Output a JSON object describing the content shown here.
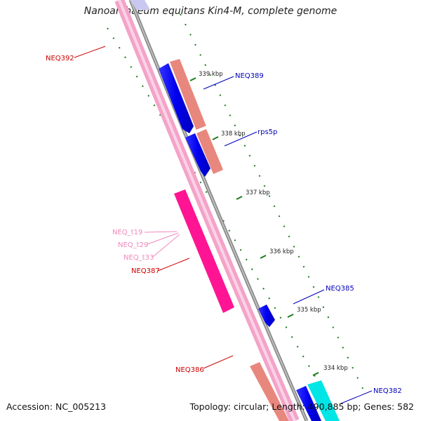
{
  "title": "Nanoarchaeum equitans Kin4-M, complete genome",
  "footer": {
    "accession_label": "Accession: NC_005213",
    "topology_text": "Topology: circular;",
    "length_text": "Length: 490,885 bp;",
    "genes_text": "Genes: 582"
  },
  "colors": {
    "backbone_gray": "#8a8a8a",
    "track_pink": "#f4a3c8",
    "gene_blue": "#0000ff",
    "gene_salmon": "#e8877d",
    "gene_magenta": "#ff1493",
    "gene_cyan": "#00e5e5",
    "label_red": "#cc0000",
    "label_blue": "#0000bb",
    "label_pink": "#ee88bb",
    "tick_green": "#1a7a1a"
  },
  "ticks": [
    "339 kbp",
    "338 kbp",
    "337 kbp",
    "336 kbp",
    "335 kbp",
    "334 kbp"
  ],
  "gene_labels": {
    "neq392": "NEQ392",
    "neq389": "NEQ389",
    "rps5p": "rps5p",
    "neq_t19": "NEQ_t19",
    "neq_t29": "NEQ_t29",
    "neq_t33": "NEQ_t33",
    "neq387": "NEQ387",
    "neq385": "NEQ385",
    "neq386": "NEQ386",
    "neq382": "NEQ382"
  }
}
